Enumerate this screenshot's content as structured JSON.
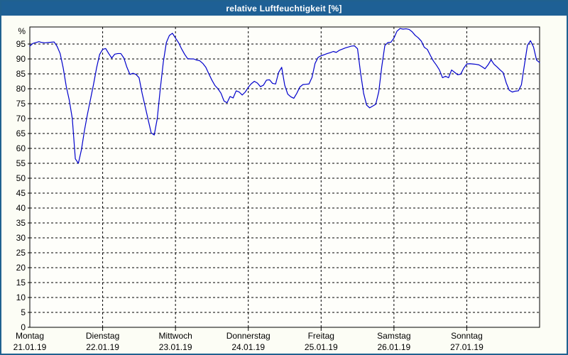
{
  "window": {
    "title": "relative Luftfeuchtigkeit [%]"
  },
  "colors": {
    "frame": "#20618f",
    "title_bar": "#1e6095",
    "title_text": "#ffffff",
    "background": "#fcfdf5",
    "plot_background": "#fefefa",
    "grid": "#000000",
    "line": "#0000cc"
  },
  "chart_data": {
    "type": "line",
    "title": "relative Luftfeuchtigkeit [%]",
    "ylabel": "%",
    "unit": "%",
    "ylim": [
      0,
      100.7
    ],
    "grid": "dashed, horizontal every 5%, vertical at day boundaries",
    "legend": "none",
    "y_ticks": [
      0,
      5,
      10,
      15,
      20,
      25,
      30,
      35,
      40,
      45,
      50,
      55,
      60,
      65,
      70,
      75,
      80,
      85,
      90,
      95
    ],
    "x_axis": {
      "days": [
        {
          "name": "Montag",
          "date": "21.01.19"
        },
        {
          "name": "Dienstag",
          "date": "22.01.19"
        },
        {
          "name": "Mittwoch",
          "date": "23.01.19"
        },
        {
          "name": "Donnerstag",
          "date": "24.01.19"
        },
        {
          "name": "Freitag",
          "date": "25.01.19"
        },
        {
          "name": "Samstag",
          "date": "26.01.19"
        },
        {
          "name": "Sonntag",
          "date": "27.01.19"
        }
      ]
    },
    "sampling": "hourly, Monday 00:00 through Sunday 24:00",
    "series": [
      {
        "name": "relative Luftfeuchtigkeit",
        "color": "#0000cc",
        "values": [
          94.3,
          95.2,
          95.5,
          95.8,
          95.5,
          95.4,
          95.5,
          95.6,
          95.7,
          94.2,
          91.8,
          87.0,
          80.8,
          76.2,
          70.0,
          56.5,
          55.0,
          59.5,
          66.0,
          71.5,
          76.5,
          81.5,
          87.0,
          91.5,
          93.2,
          93.5,
          91.8,
          90.3,
          91.6,
          91.8,
          91.8,
          90.3,
          87.2,
          84.8,
          85.2,
          84.8,
          83.7,
          78.5,
          74.1,
          69.6,
          65.2,
          64.5,
          70.0,
          80.0,
          89.0,
          95.5,
          97.9,
          98.6,
          97.0,
          95.5,
          93.4,
          91.6,
          90.1,
          90.0,
          90.0,
          89.6,
          89.4,
          88.5,
          87.2,
          85.0,
          82.9,
          81.1,
          80.0,
          78.5,
          75.9,
          75.3,
          77.4,
          76.9,
          79.3,
          78.9,
          77.9,
          78.9,
          80.5,
          81.7,
          82.5,
          81.9,
          80.7,
          81.2,
          82.9,
          83.0,
          81.8,
          81.6,
          85.5,
          87.2,
          81.2,
          78.2,
          77.3,
          76.8,
          78.5,
          80.6,
          81.4,
          81.5,
          81.6,
          83.8,
          88.5,
          90.5,
          91.1,
          91.4,
          91.8,
          92.1,
          92.5,
          92.2,
          92.9,
          93.3,
          93.7,
          94.0,
          94.3,
          94.4,
          93.4,
          85.3,
          78.5,
          74.5,
          73.6,
          74.2,
          74.8,
          79.0,
          87.5,
          94.5,
          95.5,
          95.6,
          97.0,
          99.3,
          100.2,
          100.0,
          100.1,
          99.9,
          99.1,
          97.9,
          97.1,
          96.0,
          93.9,
          93.2,
          91.2,
          89.3,
          87.9,
          86.3,
          83.7,
          84.2,
          83.7,
          86.3,
          85.5,
          84.7,
          84.9,
          86.9,
          88.3,
          88.4,
          88.3,
          88.2,
          88.0,
          87.4,
          86.7,
          88.0,
          89.7,
          88.2,
          87.3,
          86.3,
          85.4,
          82.0,
          79.5,
          78.9,
          79.2,
          79.3,
          81.3,
          88.0,
          94.6,
          96.1,
          94.0,
          89.6,
          88.8
        ]
      }
    ]
  }
}
